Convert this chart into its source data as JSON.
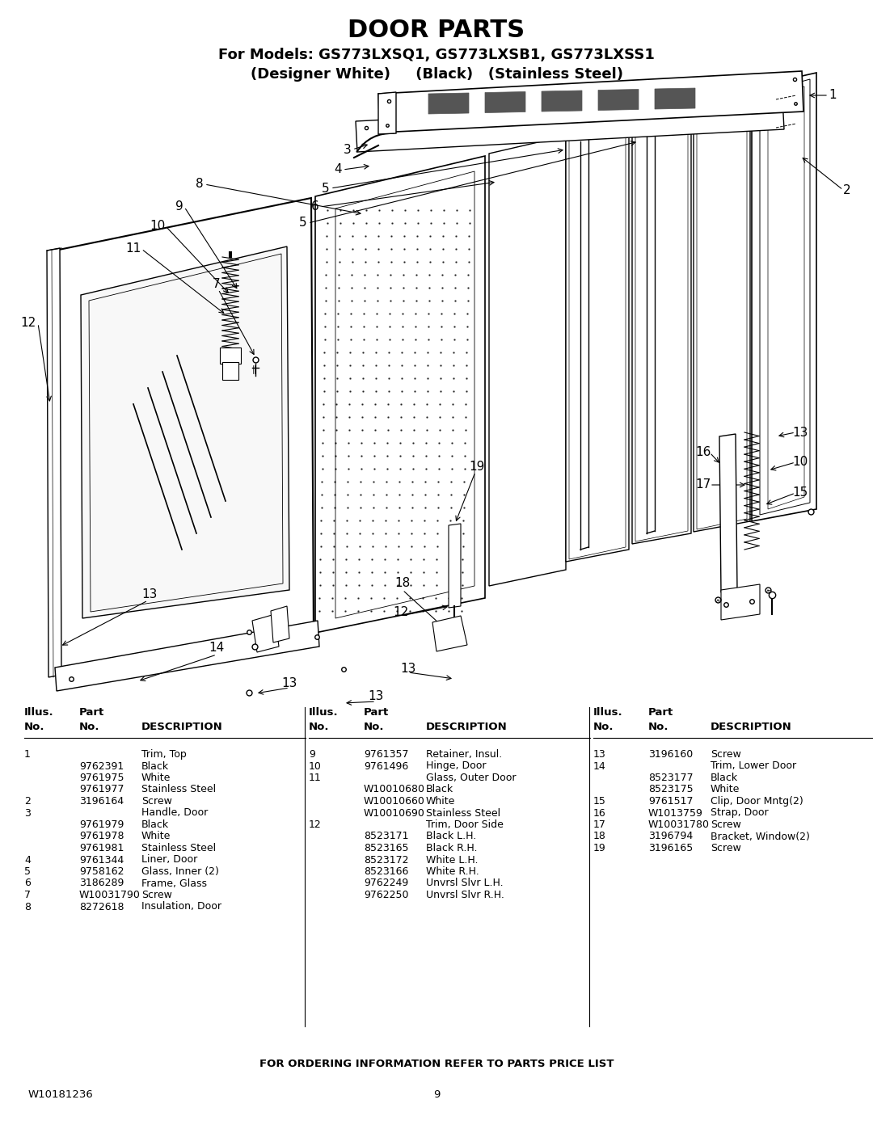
{
  "title": "DOOR PARTS",
  "subtitle1": "For Models: GS773LXSQ1, GS773LXSB1, GS773LXSS1",
  "subtitle2": "(Designer White)     (Black)   (Stainless Steel)",
  "footer_center": "FOR ORDERING INFORMATION REFER TO PARTS PRICE LIST",
  "footer_left": "W10181236",
  "footer_page": "9",
  "bg_color": "#ffffff",
  "text_color": "#000000",
  "col1_rows": [
    [
      "1",
      "",
      "Trim, Top"
    ],
    [
      "",
      "9762391",
      "Black"
    ],
    [
      "",
      "9761975",
      "White"
    ],
    [
      "",
      "9761977",
      "Stainless Steel"
    ],
    [
      "2",
      "3196164",
      "Screw"
    ],
    [
      "3",
      "",
      "Handle, Door"
    ],
    [
      "",
      "9761979",
      "Black"
    ],
    [
      "",
      "9761978",
      "White"
    ],
    [
      "",
      "9761981",
      "Stainless Steel"
    ],
    [
      "4",
      "9761344",
      "Liner, Door"
    ],
    [
      "5",
      "9758162",
      "Glass, Inner (2)"
    ],
    [
      "6",
      "3186289",
      "Frame, Glass"
    ],
    [
      "7",
      "W10031790",
      "Screw"
    ],
    [
      "8",
      "8272618",
      "Insulation, Door"
    ]
  ],
  "col2_rows": [
    [
      "9",
      "9761357",
      "Retainer, Insul."
    ],
    [
      "10",
      "9761496",
      "Hinge, Door"
    ],
    [
      "11",
      "",
      "Glass, Outer Door"
    ],
    [
      "",
      "W10010680",
      "Black"
    ],
    [
      "",
      "W10010660",
      "White"
    ],
    [
      "",
      "W10010690",
      "Stainless Steel"
    ],
    [
      "12",
      "",
      "Trim, Door Side"
    ],
    [
      "",
      "8523171",
      "Black L.H."
    ],
    [
      "",
      "8523165",
      "Black R.H."
    ],
    [
      "",
      "8523172",
      "White L.H."
    ],
    [
      "",
      "8523166",
      "White R.H."
    ],
    [
      "",
      "9762249",
      "Unvrsl Slvr L.H."
    ],
    [
      "",
      "9762250",
      "Unvrsl Slvr R.H."
    ]
  ],
  "col3_rows": [
    [
      "13",
      "3196160",
      "Screw"
    ],
    [
      "14",
      "",
      "Trim, Lower Door"
    ],
    [
      "",
      "8523177",
      "Black"
    ],
    [
      "",
      "8523175",
      "White"
    ],
    [
      "15",
      "9761517",
      "Clip, Door Mntg(2)"
    ],
    [
      "16",
      "W1013759",
      "Strap, Door"
    ],
    [
      "17",
      "W10031780",
      "Screw"
    ],
    [
      "18",
      "3196794",
      "Bracket, Window(2)"
    ],
    [
      "19",
      "3196165",
      "Screw"
    ]
  ]
}
